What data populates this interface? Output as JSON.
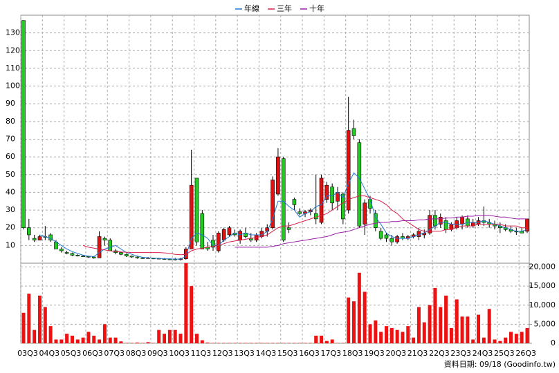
{
  "chart_data": {
    "type": "candlestick",
    "categories": [
      "03Q3",
      null,
      null,
      null,
      "04Q3",
      null,
      null,
      null,
      "05Q3",
      null,
      null,
      null,
      "06Q3",
      null,
      null,
      null,
      "07Q3",
      null,
      null,
      null,
      "08Q3",
      null,
      null,
      null,
      "09Q3",
      null,
      null,
      null,
      "10Q3",
      null,
      null,
      null,
      "11Q3",
      null,
      null,
      null,
      "12Q3",
      null,
      null,
      null,
      "13Q3",
      null,
      null,
      null,
      "14Q3",
      null,
      null,
      null,
      "15Q3",
      null,
      null,
      null,
      "16Q3",
      null,
      null,
      null,
      "17Q3",
      null,
      null,
      null,
      "18Q3",
      null,
      null,
      null,
      "19Q3",
      null,
      null,
      null,
      "20Q3",
      null,
      null,
      null,
      "21Q3",
      null,
      null,
      null,
      "22Q3",
      null,
      null,
      null,
      "23Q3",
      null,
      null,
      null,
      "24Q3",
      null,
      null,
      null,
      "25Q3",
      null,
      null,
      null,
      "26Q3",
      null
    ],
    "open": [
      137,
      20,
      14,
      13,
      15,
      16,
      12,
      8,
      6,
      5.5,
      4.5,
      4,
      3.8,
      3.5,
      3,
      14,
      13,
      7,
      6,
      5,
      4,
      3.5,
      3,
      3,
      2.8,
      2.7,
      2.5,
      2.3,
      2.3,
      2,
      2.5,
      8,
      48,
      28,
      9,
      13,
      7,
      13,
      16,
      17,
      13,
      17,
      14,
      13,
      15,
      18,
      20,
      39,
      59,
      20,
      36,
      29,
      28,
      29,
      28,
      23,
      36,
      43,
      35,
      39,
      30,
      76,
      68,
      22,
      36,
      28,
      18,
      16,
      14,
      12,
      15,
      14,
      15,
      15,
      16,
      17,
      27,
      22,
      24,
      19,
      20,
      22,
      25,
      21,
      22,
      24,
      23,
      22,
      21,
      20,
      19,
      18,
      18,
      18
    ],
    "high": [
      137,
      25,
      16,
      16,
      21,
      17,
      13,
      9,
      7,
      6,
      5,
      4.5,
      4,
      4,
      18,
      15,
      14,
      8,
      6.5,
      5.5,
      4.3,
      3.8,
      3.5,
      3.5,
      3,
      3,
      2.8,
      2.7,
      3,
      3,
      9,
      64,
      48,
      30,
      12,
      16,
      18,
      20,
      21,
      19,
      19,
      20,
      17,
      17,
      20,
      22,
      49,
      65,
      60,
      23,
      37,
      31,
      30,
      31,
      50,
      50,
      46,
      45,
      43,
      40,
      94,
      81,
      70,
      36,
      38,
      30,
      20,
      17,
      16,
      16,
      17,
      16,
      17,
      20,
      19,
      30,
      30,
      28,
      26,
      23,
      26,
      27,
      27,
      25,
      26,
      32,
      25,
      24,
      23,
      22,
      21,
      20,
      20,
      25
    ],
    "low": [
      19,
      13,
      12,
      13,
      13,
      12,
      8,
      6,
      5,
      4,
      3.8,
      3.5,
      3,
      2.5,
      3,
      10,
      7,
      5,
      4.5,
      3.5,
      3,
      2.5,
      2.5,
      2.5,
      2.3,
      2.2,
      2,
      2,
      1.5,
      1.5,
      2,
      8,
      10,
      8,
      7,
      7,
      6,
      12,
      15,
      15,
      11,
      14,
      12,
      12,
      14,
      15,
      19,
      38,
      12,
      17,
      30,
      27,
      26,
      27,
      22,
      22,
      34,
      30,
      30,
      22,
      28,
      70,
      20,
      16,
      28,
      18,
      13,
      12,
      10,
      11,
      13,
      13,
      14,
      13,
      14,
      16,
      19,
      20,
      17,
      18,
      19,
      19,
      20,
      20,
      21,
      21,
      20,
      19,
      17,
      18,
      17,
      16,
      17,
      17
    ],
    "close": [
      20,
      16,
      13,
      15,
      15,
      13,
      8,
      7,
      5.5,
      4.5,
      4,
      3.8,
      3.5,
      3,
      15,
      13,
      7,
      6,
      5,
      4,
      3.5,
      3,
      3,
      2.8,
      2.7,
      2.5,
      2.3,
      2.3,
      2,
      2.5,
      8,
      44,
      12,
      8,
      8,
      9,
      17,
      19,
      20,
      16,
      18,
      15,
      13,
      16,
      18,
      20,
      47,
      60,
      13,
      19,
      33,
      28,
      29,
      30,
      25,
      48,
      44,
      34,
      40,
      25,
      75,
      72,
      21,
      34,
      31,
      20,
      14,
      14,
      12,
      15,
      14,
      15,
      16,
      18,
      17,
      27,
      21,
      26,
      19,
      22,
      24,
      26,
      21,
      23,
      24,
      23,
      22,
      21,
      20,
      19,
      18,
      18,
      17,
      25
    ],
    "up_color": "#e01010",
    "down_color": "#22cc22",
    "series": [
      {
        "name": "年線",
        "color": "#1f78d1",
        "values": [
          null,
          null,
          null,
          16,
          15,
          14,
          12,
          10,
          8,
          6.5,
          5.5,
          4.5,
          4,
          3.7,
          6,
          8,
          9,
          10,
          8,
          6,
          5,
          4,
          3.3,
          3,
          2.8,
          2.7,
          2.5,
          2.4,
          2.3,
          2.3,
          4,
          14,
          17,
          16,
          14,
          10,
          10,
          13,
          15,
          17,
          16,
          17,
          16,
          16,
          16,
          18,
          25,
          35,
          35,
          32,
          30,
          26,
          28,
          29,
          32,
          33,
          38,
          38,
          40,
          37,
          45,
          51,
          48,
          42,
          36,
          26,
          22,
          17,
          15,
          14,
          14,
          14,
          15,
          16,
          17,
          19,
          21,
          23,
          23,
          22,
          22,
          22,
          23,
          23,
          23,
          24,
          23,
          22,
          21,
          20,
          19,
          18,
          18,
          19
        ]
      },
      {
        "name": "三年",
        "color": "#d8204a",
        "values": [
          null,
          null,
          null,
          null,
          null,
          null,
          null,
          null,
          null,
          null,
          null,
          10,
          9,
          8.5,
          8,
          7.5,
          7,
          6.5,
          6.3,
          6.2,
          6,
          6,
          6,
          6,
          6,
          6,
          5.8,
          5.5,
          5,
          4.8,
          5,
          7,
          8,
          8.5,
          9,
          9.5,
          10,
          11,
          12,
          12.5,
          13,
          13.5,
          14,
          14.5,
          15,
          16,
          18,
          20,
          21,
          21,
          22,
          23,
          24,
          25,
          26,
          27,
          28,
          30,
          32,
          34,
          36,
          37,
          38,
          38,
          37,
          36,
          35,
          33,
          30,
          28,
          25,
          23,
          21,
          19,
          18,
          18,
          18,
          18,
          19,
          19,
          20,
          21,
          21,
          21,
          22,
          22,
          22,
          22,
          22,
          21,
          21,
          21,
          20,
          20
        ]
      },
      {
        "name": "十年",
        "color": "#9a1fa8",
        "values": [
          null,
          null,
          null,
          null,
          null,
          null,
          null,
          null,
          null,
          null,
          null,
          null,
          null,
          null,
          null,
          null,
          null,
          null,
          null,
          null,
          null,
          null,
          null,
          null,
          null,
          null,
          null,
          null,
          null,
          null,
          null,
          null,
          null,
          null,
          null,
          null,
          null,
          null,
          null,
          9,
          9,
          9,
          9,
          9,
          9,
          9,
          9.5,
          10,
          11,
          11.5,
          12,
          12.5,
          13,
          13.5,
          14,
          14.5,
          15,
          16,
          17,
          17.5,
          18,
          19,
          20,
          21,
          22,
          22.5,
          23,
          23,
          23.5,
          23.5,
          24,
          24,
          24,
          24.5,
          24.5,
          25,
          25,
          25,
          25.5,
          25.5,
          26,
          26,
          26.5,
          26.5,
          27,
          27,
          27,
          26.5,
          26,
          26,
          25.5,
          25,
          25,
          25
        ]
      }
    ],
    "volume": {
      "color": "#ee1111",
      "values": [
        8000,
        13000,
        3500,
        12500,
        9500,
        4500,
        1000,
        1000,
        2500,
        2000,
        1000,
        1500,
        3000,
        2000,
        1000,
        5000,
        1500,
        1500,
        500,
        100,
        100,
        200,
        100,
        300,
        100,
        3500,
        2500,
        3500,
        3500,
        2500,
        21000,
        15000,
        2500,
        800,
        200,
        100,
        100,
        100,
        100,
        100,
        100,
        100,
        100,
        100,
        100,
        100,
        100,
        100,
        100,
        100,
        100,
        100,
        100,
        100,
        2000,
        2000,
        600,
        1000,
        100,
        100,
        12000,
        11000,
        18500,
        13500,
        5000,
        6000,
        3000,
        4500,
        4000,
        3500,
        3000,
        4500,
        1500,
        9500,
        5500,
        10000,
        14500,
        9500,
        12500,
        4000,
        11500,
        7000,
        7000,
        1000,
        7500,
        1500,
        9000,
        1000,
        600,
        1500,
        3000,
        2500,
        3000,
        4000
      ]
    },
    "ylim": [
      0,
      140
    ],
    "yticks": [
      10,
      20,
      30,
      40,
      50,
      60,
      70,
      80,
      90,
      100,
      110,
      120,
      130
    ],
    "y2lim": [
      0,
      21000
    ],
    "y2ticks": [
      0,
      {
        "value": 5000,
        "label": "5,000"
      },
      {
        "value": 10000,
        "label": "10,000"
      },
      {
        "value": 15000,
        "label": "15,000"
      },
      {
        "value": 20000,
        "label": "20,000"
      }
    ],
    "grid": true,
    "footnote": "資料日期: 09/18 (Goodinfo.tw)"
  }
}
